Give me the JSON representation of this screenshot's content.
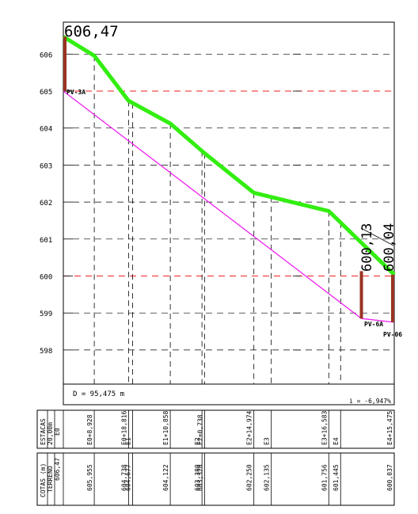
{
  "profile": {
    "start_elevation_label": "606,47",
    "end_labels": [
      "600,13",
      "600,04"
    ],
    "distance_label": "D = 95,475 m",
    "slope_label": "i = -6,947%",
    "y_ticks": [
      "606",
      "605",
      "604",
      "603",
      "602",
      "601",
      "600",
      "599",
      "598"
    ],
    "pv_labels": {
      "start_top": "PV-3A",
      "end_left": "PV-6A",
      "end_right": "PV-06"
    },
    "colors": {
      "terrain": "#33ee11",
      "pipe": "#ee22ee",
      "well": "#993322",
      "ref_line": "#ee2222",
      "guide": "#000000"
    }
  },
  "table": {
    "header_top": [
      "ESTACAS",
      "20,00m"
    ],
    "header_bottom": [
      "COTAS (m)",
      "TERRENO"
    ],
    "first_station": "E0",
    "first_elevation": "606,47",
    "stations": [
      "E0+8,928",
      "E0+18,816",
      "E1",
      "E1+10,858",
      "E2",
      "E2+0,738",
      "E2+14,974",
      "E3",
      "E3+16,583",
      "E4",
      "E4+15,475"
    ],
    "elevations": [
      "605,955",
      "604,738",
      "604,677",
      "604,122",
      "603,380",
      "603,320",
      "602,250",
      "602,135",
      "601,756",
      "601,445",
      "600,037"
    ]
  },
  "chart_data": {
    "type": "line",
    "title": "",
    "xlabel": "",
    "ylabel": "",
    "ylim": [
      597.5,
      606.6
    ],
    "x_stations": [
      "E0",
      "E0+8,928",
      "E0+18,816",
      "E1",
      "E1+10,858",
      "E2",
      "E2+0,738",
      "E2+14,974",
      "E3",
      "E3+16,583",
      "E4",
      "E4+15,475"
    ],
    "x_distance_m": [
      0,
      8.928,
      18.816,
      20,
      30.858,
      40,
      40.738,
      54.974,
      60,
      76.583,
      80,
      95.475
    ],
    "series": [
      {
        "values": [
          606.47,
          605.955,
          604.738,
          604.677,
          604.122,
          603.38,
          603.32,
          602.25,
          602.135,
          601.756,
          601.445,
          600.037
        ]
      }
    ],
    "pipe": {
      "x_distance_m": [
        0,
        86,
        95.475
      ],
      "values": [
        605.0,
        598.85,
        598.75
      ]
    }
  }
}
